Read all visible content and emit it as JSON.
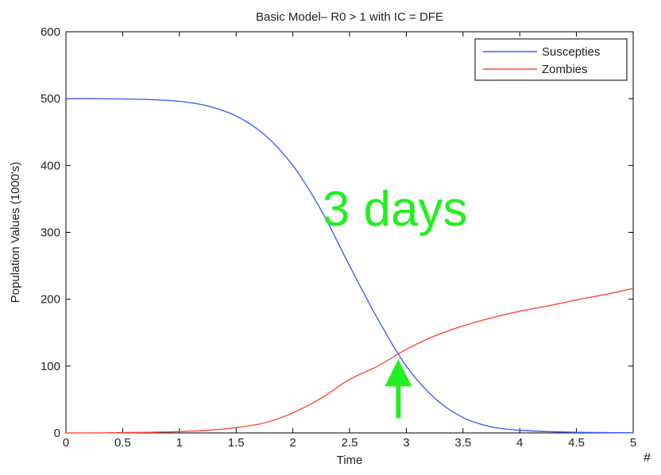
{
  "chart_data": {
    "type": "line",
    "title": "Basic Model– R0 > 1 with IC = DFE",
    "xlabel": "Time",
    "ylabel": "Population Values (1000's)",
    "xlim": [
      0,
      5
    ],
    "ylim": [
      0,
      600
    ],
    "x_ticks": [
      "0",
      "0.5",
      "1",
      "1.5",
      "2",
      "2.5",
      "3",
      "3.5",
      "4",
      "4.5",
      "5"
    ],
    "y_ticks": [
      "0",
      "100",
      "200",
      "300",
      "400",
      "500",
      "600"
    ],
    "grid": false,
    "legend_position": "top-right",
    "x": [
      0,
      0.25,
      0.5,
      0.75,
      1,
      1.25,
      1.5,
      1.75,
      2,
      2.25,
      2.5,
      2.75,
      3,
      3.25,
      3.5,
      3.75,
      4,
      4.25,
      4.5,
      4.75,
      5
    ],
    "series": [
      {
        "name": "Suscepties",
        "color": "#3f5fff",
        "values": [
          500,
          500,
          499.5,
          498.5,
          496,
          489,
          474,
          446,
          400,
          333,
          250,
          170,
          100,
          52,
          23,
          9,
          4,
          2,
          1,
          0.5,
          0.3
        ]
      },
      {
        "name": "Zombies",
        "color": "#ff4a3a",
        "values": [
          0,
          0,
          0.5,
          1,
          2,
          4,
          8,
          15,
          30,
          52,
          80,
          100,
          125,
          145,
          160,
          172,
          182,
          190,
          199,
          207,
          216
        ]
      }
    ],
    "annotations": [
      {
        "text": "3 days",
        "color": "#22ee22",
        "x": 2.9,
        "y": 310
      },
      {
        "type": "arrow",
        "color": "#22ee22",
        "x": 2.93,
        "y_from": 22,
        "y_to": 110
      }
    ]
  },
  "corner_text": "#"
}
